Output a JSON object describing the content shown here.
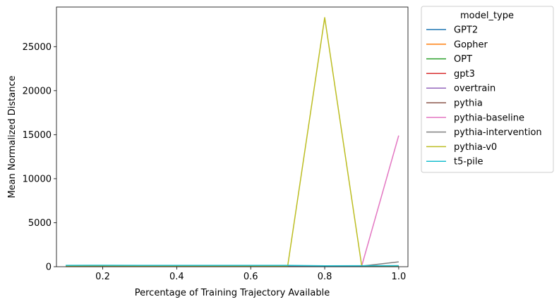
{
  "chart_data": {
    "type": "line",
    "title": "",
    "xlabel": "Percentage of Training Trajectory Available",
    "ylabel": "Mean Normalized Distance",
    "xlim": [
      0.075,
      1.025
    ],
    "ylim": [
      0,
      29500
    ],
    "xticks": [
      0.2,
      0.4,
      0.6,
      0.8,
      1.0
    ],
    "xtick_labels": [
      "0.2",
      "0.4",
      "0.6",
      "0.8",
      "1.0"
    ],
    "yticks": [
      0,
      5000,
      10000,
      15000,
      20000,
      25000
    ],
    "ytick_labels": [
      "0",
      "5000",
      "10000",
      "15000",
      "20000",
      "25000"
    ],
    "grid": false,
    "legend": {
      "title": "model_type",
      "placement": "outside-right"
    },
    "series": [
      {
        "name": "GPT2",
        "color": "#1f77b4",
        "x": [
          0.1,
          0.2,
          0.3,
          0.4,
          0.5,
          0.6,
          0.7,
          0.8,
          0.9,
          1.0
        ],
        "y": [
          60,
          70,
          65,
          60,
          60,
          60,
          55,
          50,
          55,
          60
        ]
      },
      {
        "name": "Gopher",
        "color": "#ff7f0e",
        "x": [
          0.1,
          0.2,
          0.3,
          0.4,
          0.5,
          0.6,
          0.7,
          0.8,
          0.9,
          1.0
        ],
        "y": [
          40,
          45,
          40,
          40,
          40,
          40,
          40,
          35,
          40,
          40
        ]
      },
      {
        "name": "OPT",
        "color": "#2ca02c",
        "x": [
          0.1,
          0.2,
          0.3,
          0.4,
          0.5,
          0.6,
          0.7,
          0.8,
          0.9,
          1.0
        ],
        "y": [
          50,
          55,
          50,
          50,
          50,
          50,
          45,
          45,
          50,
          50
        ]
      },
      {
        "name": "gpt3",
        "color": "#d62728",
        "x": [
          0.1,
          0.2,
          0.3,
          0.4,
          0.5,
          0.6,
          0.7,
          0.8,
          0.9,
          1.0
        ],
        "y": [
          30,
          30,
          30,
          30,
          30,
          30,
          30,
          30,
          30,
          30
        ]
      },
      {
        "name": "overtrain",
        "color": "#9467bd",
        "x": [
          0.1,
          0.2,
          0.3,
          0.4,
          0.5,
          0.6,
          0.7,
          0.8,
          0.9,
          1.0
        ],
        "y": [
          45,
          50,
          45,
          45,
          45,
          45,
          45,
          40,
          45,
          45
        ]
      },
      {
        "name": "pythia",
        "color": "#8c564b",
        "x": [
          0.1,
          0.2,
          0.3,
          0.4,
          0.5,
          0.6,
          0.7,
          0.8,
          0.9,
          1.0
        ],
        "y": [
          55,
          60,
          55,
          55,
          55,
          55,
          50,
          50,
          50,
          55
        ]
      },
      {
        "name": "pythia-baseline",
        "color": "#e377c2",
        "x": [
          0.1,
          0.2,
          0.3,
          0.4,
          0.5,
          0.6,
          0.7,
          0.8,
          0.9,
          1.0
        ],
        "y": [
          80,
          90,
          85,
          80,
          80,
          80,
          80,
          75,
          80,
          14900
        ]
      },
      {
        "name": "pythia-intervention",
        "color": "#7f7f7f",
        "x": [
          0.1,
          0.2,
          0.3,
          0.4,
          0.5,
          0.6,
          0.7,
          0.8,
          0.9,
          1.0
        ],
        "y": [
          70,
          75,
          70,
          70,
          70,
          70,
          70,
          65,
          70,
          550
        ]
      },
      {
        "name": "pythia-v0",
        "color": "#bcbd22",
        "x": [
          0.1,
          0.2,
          0.3,
          0.4,
          0.5,
          0.6,
          0.7,
          0.8,
          0.9,
          1.0
        ],
        "y": [
          100,
          110,
          105,
          100,
          100,
          100,
          100,
          28300,
          100,
          100
        ]
      },
      {
        "name": "t5-pile",
        "color": "#17becf",
        "x": [
          0.1,
          0.2,
          0.3,
          0.4,
          0.5,
          0.6,
          0.7,
          0.8,
          0.9,
          1.0
        ],
        "y": [
          150,
          160,
          150,
          150,
          150,
          150,
          150,
          100,
          110,
          120
        ]
      }
    ]
  }
}
